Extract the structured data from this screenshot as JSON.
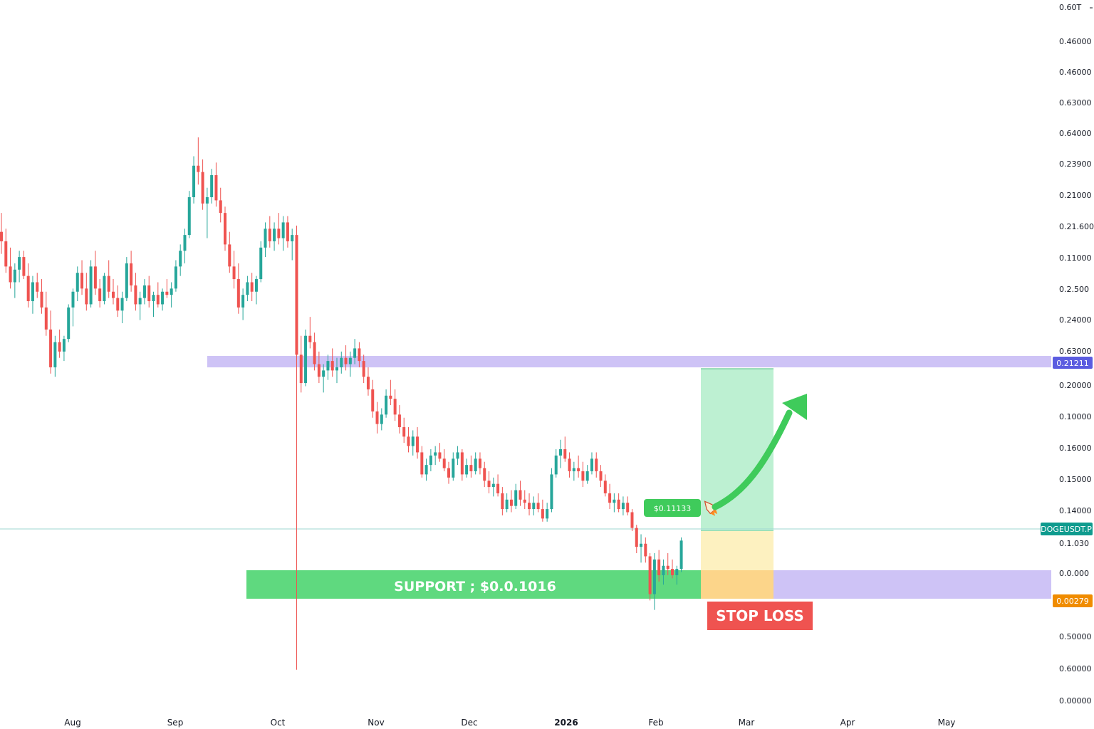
{
  "chart_data": {
    "type": "candlestick",
    "symbol_tag": "DOGEUSDT.P",
    "price_axis_labels": [
      "0.60T",
      "0.46000",
      "0.46000",
      "0.63000",
      "0.64000",
      "0.23900",
      "0.21000",
      "0.21.600",
      "0.11000",
      "0.2.500",
      "0.24000",
      "0.63000",
      "0.20000",
      "0.10000",
      "0.16000",
      "0.15000",
      "0.14000",
      "0.1.030",
      "0.0.000",
      "0.50000",
      "0.60000",
      "0.00000"
    ],
    "time_axis_labels": [
      "Aug",
      "Sep",
      "Oct",
      "Nov",
      "Dec",
      "2026",
      "Feb",
      "Mar",
      "Apr",
      "May"
    ],
    "ylim": [
      0.09,
      0.29
    ],
    "resistance_zone": {
      "low": 0.21,
      "high": 0.214,
      "tag": "0.21211",
      "color": "#c9bdf5"
    },
    "support_zone": {
      "low": 0.099,
      "high": 0.103,
      "label": "SUPPORT ; $0.0.1016",
      "color": "#5fd97f"
    },
    "stop_zone_tag": "0.00279",
    "entry_price_label": "$0.11133",
    "current_price": 0.113,
    "stop_loss_label": "STOP LOSS",
    "colors": {
      "up": "#26a69a",
      "down": "#ef5350",
      "target": "#bdf0d2",
      "risk": "#fdf1c0",
      "stop_overlap": "#fcd58a",
      "arrow": "#3fcb5b",
      "tag_blue": "#5b5ce0",
      "tag_teal": "#0f9b8e",
      "tag_orange": "#f08c00",
      "stop_box": "#ef5350"
    },
    "candles": [
      [
        0.239,
        0.245,
        0.232,
        0.236
      ],
      [
        0.236,
        0.24,
        0.226,
        0.228
      ],
      [
        0.228,
        0.234,
        0.221,
        0.223
      ],
      [
        0.223,
        0.229,
        0.218,
        0.227
      ],
      [
        0.227,
        0.233,
        0.223,
        0.231
      ],
      [
        0.231,
        0.233,
        0.224,
        0.225
      ],
      [
        0.225,
        0.229,
        0.215,
        0.217
      ],
      [
        0.217,
        0.225,
        0.213,
        0.223
      ],
      [
        0.223,
        0.226,
        0.218,
        0.22
      ],
      [
        0.22,
        0.224,
        0.213,
        0.215
      ],
      [
        0.215,
        0.22,
        0.206,
        0.208
      ],
      [
        0.208,
        0.214,
        0.194,
        0.196
      ],
      [
        0.196,
        0.206,
        0.193,
        0.204
      ],
      [
        0.204,
        0.208,
        0.199,
        0.201
      ],
      [
        0.201,
        0.206,
        0.198,
        0.205
      ],
      [
        0.205,
        0.216,
        0.204,
        0.215
      ],
      [
        0.215,
        0.221,
        0.209,
        0.22
      ],
      [
        0.22,
        0.228,
        0.217,
        0.226
      ],
      [
        0.226,
        0.23,
        0.219,
        0.221
      ],
      [
        0.221,
        0.226,
        0.214,
        0.216
      ],
      [
        0.216,
        0.23,
        0.215,
        0.228
      ],
      [
        0.228,
        0.233,
        0.219,
        0.221
      ],
      [
        0.221,
        0.224,
        0.215,
        0.217
      ],
      [
        0.217,
        0.226,
        0.216,
        0.225
      ],
      [
        0.225,
        0.23,
        0.218,
        0.22
      ],
      [
        0.22,
        0.224,
        0.216,
        0.218
      ],
      [
        0.218,
        0.222,
        0.212,
        0.214
      ],
      [
        0.214,
        0.22,
        0.21,
        0.218
      ],
      [
        0.218,
        0.231,
        0.217,
        0.229
      ],
      [
        0.229,
        0.233,
        0.22,
        0.222
      ],
      [
        0.222,
        0.226,
        0.214,
        0.216
      ],
      [
        0.216,
        0.22,
        0.211,
        0.218
      ],
      [
        0.218,
        0.224,
        0.216,
        0.222
      ],
      [
        0.222,
        0.225,
        0.215,
        0.217
      ],
      [
        0.217,
        0.22,
        0.212,
        0.219
      ],
      [
        0.219,
        0.223,
        0.215,
        0.216
      ],
      [
        0.216,
        0.221,
        0.214,
        0.22
      ],
      [
        0.22,
        0.224,
        0.218,
        0.219
      ],
      [
        0.219,
        0.223,
        0.215,
        0.221
      ],
      [
        0.221,
        0.23,
        0.22,
        0.228
      ],
      [
        0.228,
        0.235,
        0.225,
        0.233
      ],
      [
        0.233,
        0.24,
        0.229,
        0.238
      ],
      [
        0.238,
        0.252,
        0.237,
        0.25
      ],
      [
        0.25,
        0.263,
        0.248,
        0.26
      ],
      [
        0.26,
        0.269,
        0.254,
        0.258
      ],
      [
        0.258,
        0.262,
        0.246,
        0.248
      ],
      [
        0.248,
        0.253,
        0.237,
        0.25
      ],
      [
        0.25,
        0.259,
        0.248,
        0.257
      ],
      [
        0.257,
        0.261,
        0.247,
        0.249
      ],
      [
        0.249,
        0.253,
        0.242,
        0.245
      ],
      [
        0.245,
        0.247,
        0.233,
        0.235
      ],
      [
        0.235,
        0.239,
        0.226,
        0.228
      ],
      [
        0.228,
        0.233,
        0.221,
        0.224
      ],
      [
        0.224,
        0.229,
        0.213,
        0.215
      ],
      [
        0.215,
        0.221,
        0.211,
        0.219
      ],
      [
        0.219,
        0.225,
        0.217,
        0.223
      ],
      [
        0.223,
        0.226,
        0.217,
        0.22
      ],
      [
        0.22,
        0.225,
        0.216,
        0.224
      ],
      [
        0.224,
        0.236,
        0.223,
        0.234
      ],
      [
        0.234,
        0.242,
        0.231,
        0.24
      ],
      [
        0.24,
        0.244,
        0.234,
        0.236
      ],
      [
        0.236,
        0.242,
        0.233,
        0.24
      ],
      [
        0.24,
        0.245,
        0.235,
        0.237
      ],
      [
        0.237,
        0.244,
        0.233,
        0.242
      ],
      [
        0.242,
        0.244,
        0.234,
        0.236
      ],
      [
        0.236,
        0.24,
        0.23,
        0.238
      ],
      [
        0.238,
        0.241,
        0.1,
        0.2
      ],
      [
        0.2,
        0.206,
        0.188,
        0.191
      ],
      [
        0.191,
        0.208,
        0.19,
        0.206
      ],
      [
        0.206,
        0.212,
        0.202,
        0.204
      ],
      [
        0.204,
        0.207,
        0.195,
        0.197
      ],
      [
        0.197,
        0.201,
        0.191,
        0.193
      ],
      [
        0.193,
        0.197,
        0.188,
        0.195
      ],
      [
        0.195,
        0.2,
        0.192,
        0.198
      ],
      [
        0.198,
        0.202,
        0.193,
        0.195
      ],
      [
        0.195,
        0.199,
        0.191,
        0.196
      ],
      [
        0.196,
        0.201,
        0.194,
        0.199
      ],
      [
        0.199,
        0.203,
        0.195,
        0.197
      ],
      [
        0.197,
        0.201,
        0.193,
        0.199
      ],
      [
        0.199,
        0.205,
        0.197,
        0.202
      ],
      [
        0.202,
        0.204,
        0.196,
        0.198
      ],
      [
        0.198,
        0.2,
        0.191,
        0.193
      ],
      [
        0.193,
        0.196,
        0.187,
        0.189
      ],
      [
        0.189,
        0.192,
        0.18,
        0.182
      ],
      [
        0.182,
        0.185,
        0.175,
        0.178
      ],
      [
        0.178,
        0.183,
        0.176,
        0.181
      ],
      [
        0.181,
        0.189,
        0.18,
        0.187
      ],
      [
        0.187,
        0.192,
        0.184,
        0.186
      ],
      [
        0.186,
        0.189,
        0.179,
        0.181
      ],
      [
        0.181,
        0.184,
        0.175,
        0.177
      ],
      [
        0.177,
        0.18,
        0.172,
        0.174
      ],
      [
        0.174,
        0.177,
        0.169,
        0.171
      ],
      [
        0.171,
        0.176,
        0.168,
        0.174
      ],
      [
        0.174,
        0.177,
        0.167,
        0.169
      ],
      [
        0.169,
        0.171,
        0.161,
        0.162
      ],
      [
        0.162,
        0.167,
        0.16,
        0.165
      ],
      [
        0.165,
        0.17,
        0.163,
        0.168
      ],
      [
        0.168,
        0.171,
        0.165,
        0.169
      ],
      [
        0.169,
        0.172,
        0.166,
        0.167
      ],
      [
        0.167,
        0.17,
        0.163,
        0.164
      ],
      [
        0.164,
        0.166,
        0.159,
        0.161
      ],
      [
        0.161,
        0.169,
        0.16,
        0.167
      ],
      [
        0.167,
        0.171,
        0.165,
        0.169
      ],
      [
        0.169,
        0.17,
        0.16,
        0.162
      ],
      [
        0.162,
        0.167,
        0.161,
        0.165
      ],
      [
        0.165,
        0.168,
        0.161,
        0.163
      ],
      [
        0.163,
        0.169,
        0.162,
        0.167
      ],
      [
        0.167,
        0.169,
        0.162,
        0.164
      ],
      [
        0.164,
        0.166,
        0.158,
        0.16
      ],
      [
        0.16,
        0.163,
        0.156,
        0.158
      ],
      [
        0.158,
        0.161,
        0.155,
        0.159
      ],
      [
        0.159,
        0.162,
        0.155,
        0.156
      ],
      [
        0.156,
        0.158,
        0.149,
        0.151
      ],
      [
        0.151,
        0.156,
        0.15,
        0.154
      ],
      [
        0.154,
        0.157,
        0.15,
        0.152
      ],
      [
        0.152,
        0.159,
        0.151,
        0.157
      ],
      [
        0.157,
        0.16,
        0.152,
        0.154
      ],
      [
        0.154,
        0.157,
        0.151,
        0.153
      ],
      [
        0.153,
        0.156,
        0.149,
        0.151
      ],
      [
        0.151,
        0.155,
        0.149,
        0.153
      ],
      [
        0.153,
        0.156,
        0.15,
        0.151
      ],
      [
        0.151,
        0.154,
        0.147,
        0.148
      ],
      [
        0.148,
        0.153,
        0.147,
        0.151
      ],
      [
        0.151,
        0.164,
        0.15,
        0.162
      ],
      [
        0.162,
        0.17,
        0.161,
        0.168
      ],
      [
        0.168,
        0.173,
        0.164,
        0.17
      ],
      [
        0.17,
        0.174,
        0.166,
        0.167
      ],
      [
        0.167,
        0.169,
        0.161,
        0.163
      ],
      [
        0.163,
        0.166,
        0.16,
        0.164
      ],
      [
        0.164,
        0.168,
        0.161,
        0.163
      ],
      [
        0.163,
        0.166,
        0.158,
        0.16
      ],
      [
        0.16,
        0.165,
        0.159,
        0.163
      ],
      [
        0.163,
        0.169,
        0.162,
        0.167
      ],
      [
        0.167,
        0.169,
        0.161,
        0.163
      ],
      [
        0.163,
        0.165,
        0.158,
        0.16
      ],
      [
        0.16,
        0.162,
        0.155,
        0.156
      ],
      [
        0.156,
        0.159,
        0.151,
        0.153
      ],
      [
        0.153,
        0.156,
        0.15,
        0.154
      ],
      [
        0.154,
        0.156,
        0.15,
        0.151
      ],
      [
        0.151,
        0.155,
        0.149,
        0.153
      ],
      [
        0.153,
        0.155,
        0.149,
        0.15
      ],
      [
        0.15,
        0.151,
        0.144,
        0.145
      ],
      [
        0.145,
        0.146,
        0.137,
        0.139
      ],
      [
        0.139,
        0.143,
        0.134,
        0.14
      ],
      [
        0.14,
        0.142,
        0.134,
        0.136
      ],
      [
        0.136,
        0.137,
        0.122,
        0.124
      ],
      [
        0.124,
        0.137,
        0.119,
        0.135
      ],
      [
        0.135,
        0.138,
        0.128,
        0.13
      ],
      [
        0.13,
        0.135,
        0.127,
        0.133
      ],
      [
        0.133,
        0.137,
        0.13,
        0.132
      ],
      [
        0.132,
        0.135,
        0.129,
        0.13
      ],
      [
        0.13,
        0.133,
        0.127,
        0.132
      ],
      [
        0.132,
        0.142,
        0.131,
        0.141
      ]
    ]
  }
}
